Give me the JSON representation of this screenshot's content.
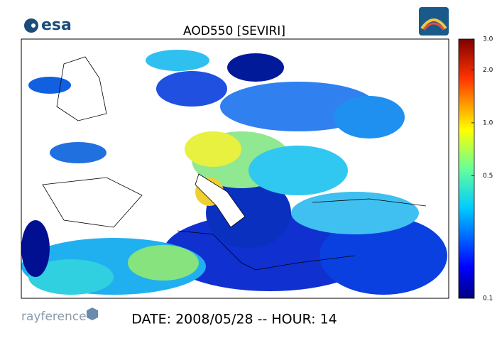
{
  "header": {
    "logo": "esa",
    "title": "AOD550   [SEVIRI]"
  },
  "colorbar": {
    "lim": [
      0.1,
      3
    ],
    "log": true,
    "ticks": [
      {
        "value": 3,
        "label": "3.0"
      },
      {
        "value": 2,
        "label": "2.0"
      },
      {
        "value": 1,
        "label": "1.0"
      },
      0.5,
      0.1
    ]
  },
  "footer": {
    "brand": "rayference",
    "date": "DATE: 2008/05/28 -- HOUR: 14"
  }
}
